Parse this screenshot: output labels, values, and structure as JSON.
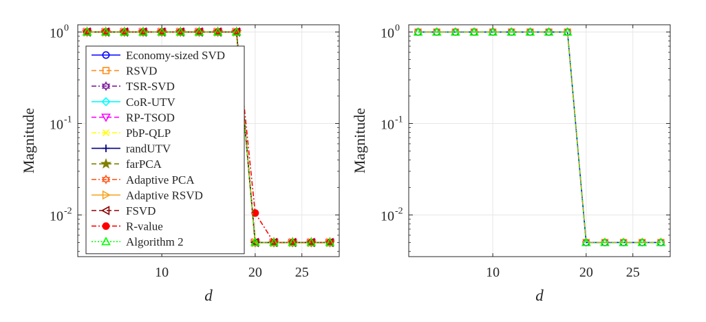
{
  "chart_data": [
    {
      "type": "line",
      "scale": {
        "x": "linear",
        "y": "log"
      },
      "xlabel": "d",
      "ylabel": "Magnitude",
      "xlim": [
        1,
        29
      ],
      "ylim": [
        0.0035,
        1.2
      ],
      "x_ticks": [
        10,
        20,
        25
      ],
      "y_ticks": [
        {
          "value": 1,
          "mantissa": "10",
          "exponent": "0"
        },
        {
          "value": 0.1,
          "mantissa": "10",
          "exponent": "-1"
        },
        {
          "value": 0.01,
          "mantissa": "10",
          "exponent": "-2"
        }
      ],
      "grid": true,
      "legend": "top-left",
      "x": [
        2,
        4,
        6,
        8,
        10,
        12,
        14,
        16,
        18,
        20,
        22,
        24,
        26,
        28
      ],
      "series": [
        {
          "name": "Economy-sized SVD",
          "color": "#0000ff",
          "dash": "solid",
          "marker": "circle",
          "values": [
            1,
            1,
            1,
            1,
            1,
            1,
            1,
            1,
            1,
            0.005,
            0.005,
            0.005,
            0.005,
            0.005
          ]
        },
        {
          "name": "RSVD",
          "color": "#ff8c1a",
          "dash": "dashed",
          "marker": "square",
          "values": [
            1,
            1,
            1,
            1,
            1,
            1,
            1,
            1,
            1,
            0.005,
            0.005,
            0.005,
            0.005,
            0.005
          ]
        },
        {
          "name": "TSR-SVD",
          "color": "#7e1e9c",
          "dash": "dashdot",
          "marker": "hexagram",
          "values": [
            1,
            1,
            1,
            1,
            1,
            1,
            1,
            1,
            1,
            0.005,
            0.005,
            0.005,
            0.005,
            0.005
          ]
        },
        {
          "name": "CoR-UTV",
          "color": "#00ffff",
          "dash": "solid",
          "marker": "diamond",
          "values": [
            1,
            1,
            1,
            1,
            1,
            1,
            1,
            1,
            1,
            0.005,
            0.005,
            0.005,
            0.005,
            0.005
          ]
        },
        {
          "name": "RP-TSOD",
          "color": "#ff00ff",
          "dash": "dashed",
          "marker": "triangle-down",
          "values": [
            1,
            1,
            1,
            1,
            1,
            1,
            1,
            1,
            1,
            0.005,
            0.005,
            0.005,
            0.005,
            0.005
          ]
        },
        {
          "name": "PbP-QLP",
          "color": "#ffff00",
          "dash": "dashdot",
          "marker": "x",
          "values": [
            1,
            1,
            1,
            1,
            1,
            1,
            1,
            1,
            1,
            0.005,
            0.005,
            0.005,
            0.005,
            0.005
          ]
        },
        {
          "name": "randUTV",
          "color": "#000080",
          "dash": "solid",
          "marker": "plus",
          "values": [
            1,
            1,
            1,
            1,
            1,
            1,
            1,
            1,
            1,
            0.005,
            0.005,
            0.005,
            0.005,
            0.005
          ]
        },
        {
          "name": "farPCA",
          "color": "#808000",
          "dash": "dashed",
          "marker": "pentagram",
          "values": [
            1,
            1,
            1,
            1,
            1,
            1,
            1,
            1,
            1,
            0.005,
            0.005,
            0.005,
            0.005,
            0.005
          ]
        },
        {
          "name": "Adaptive PCA",
          "color": "#ff5a1f",
          "dash": "dashdot",
          "marker": "hexagram",
          "values": [
            1,
            1,
            1,
            1,
            1,
            1,
            1,
            1,
            1,
            0.005,
            0.005,
            0.005,
            0.005,
            0.005
          ]
        },
        {
          "name": "Adaptive RSVD",
          "color": "#f5a623",
          "dash": "solid",
          "marker": "triangle-right",
          "values": [
            1,
            1,
            1,
            1,
            1,
            1,
            1,
            1,
            1,
            0.005,
            0.005,
            0.005,
            0.005,
            0.005
          ]
        },
        {
          "name": "FSVD",
          "color": "#8b0000",
          "dash": "dashed",
          "marker": "triangle-left",
          "values": [
            1,
            1,
            1,
            1,
            1,
            1,
            1,
            1,
            1,
            0.005,
            0.005,
            0.005,
            0.005,
            0.005
          ]
        },
        {
          "name": "R-value",
          "color": "#ff0000",
          "dash": "dashdot",
          "marker": "circle-filled",
          "values": [
            1,
            1,
            1,
            1,
            1,
            1,
            1,
            1,
            1,
            0.0105,
            0.005,
            0.005,
            0.005,
            0.005
          ]
        },
        {
          "name": "Algorithm 2",
          "color": "#00ff00",
          "dash": "dotted",
          "marker": "triangle-up",
          "values": [
            1,
            1,
            1,
            1,
            1,
            1,
            1,
            1,
            1,
            0.005,
            0.005,
            0.005,
            0.005,
            0.005
          ]
        }
      ]
    },
    {
      "type": "line",
      "scale": {
        "x": "linear",
        "y": "log"
      },
      "xlabel": "d",
      "ylabel": "Magnitude",
      "xlim": [
        1,
        29
      ],
      "ylim": [
        0.0035,
        1.2
      ],
      "x_ticks": [
        10,
        20,
        25
      ],
      "y_ticks": [
        {
          "value": 1,
          "mantissa": "10",
          "exponent": "0"
        },
        {
          "value": 0.1,
          "mantissa": "10",
          "exponent": "-1"
        },
        {
          "value": 0.01,
          "mantissa": "10",
          "exponent": "-2"
        }
      ],
      "grid": true,
      "legend": "none",
      "x": [
        2,
        4,
        6,
        8,
        10,
        12,
        14,
        16,
        18,
        20,
        22,
        24,
        26,
        28
      ],
      "series": [
        {
          "name": "Economy-sized SVD",
          "color": "#0000ff",
          "dash": "solid",
          "marker": "circle",
          "values": [
            1,
            1,
            1,
            1,
            1,
            1,
            1,
            1,
            1,
            0.005,
            0.005,
            0.005,
            0.005,
            0.005
          ]
        },
        {
          "name": "RSVD",
          "color": "#ff8c1a",
          "dash": "dashed",
          "marker": "square",
          "values": [
            1,
            1,
            1,
            1,
            1,
            1,
            1,
            1,
            1,
            0.005,
            0.005,
            0.005,
            0.005,
            0.005
          ]
        },
        {
          "name": "Algorithm 2",
          "color": "#00ff00",
          "dash": "dotted",
          "marker": "triangle-up",
          "values": [
            1,
            1,
            1,
            1,
            1,
            1,
            1,
            1,
            1,
            0.005,
            0.005,
            0.005,
            0.005,
            0.005
          ]
        }
      ]
    }
  ]
}
